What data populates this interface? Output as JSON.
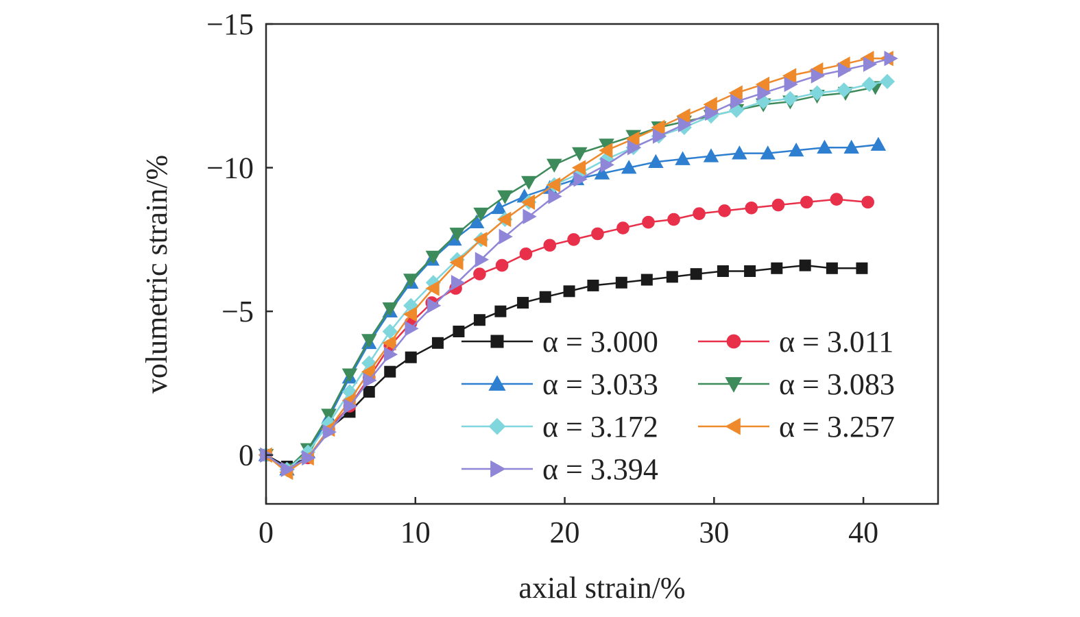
{
  "chart_data": {
    "type": "line",
    "title": "",
    "xlabel": "axial strain/%",
    "ylabel": "volumetric strain/%",
    "xlim": [
      0,
      45
    ],
    "ylim": [
      1.7,
      -15
    ],
    "y_axis_inverted": true,
    "grid": false,
    "legend_position": "lower-right, inside plot, two columns",
    "x_ticks": [
      0,
      10,
      20,
      30,
      40
    ],
    "x_tick_labels": [
      "0",
      "10",
      "20",
      "30",
      "40"
    ],
    "y_ticks": [
      0,
      -5,
      -10,
      -15
    ],
    "y_tick_labels": [
      "0",
      "−5",
      "−10",
      "−15"
    ],
    "series": [
      {
        "name": "α = 3.000",
        "color": "#1a1a1a",
        "marker": "square",
        "points": [
          [
            0,
            0
          ],
          [
            1.4,
            0.4
          ],
          [
            2.8,
            0.1
          ],
          [
            4.2,
            -0.9
          ],
          [
            5.6,
            -1.5
          ],
          [
            6.9,
            -2.2
          ],
          [
            8.3,
            -2.9
          ],
          [
            9.7,
            -3.4
          ],
          [
            11.5,
            -3.9
          ],
          [
            12.9,
            -4.3
          ],
          [
            14.3,
            -4.7
          ],
          [
            15.7,
            -5.0
          ],
          [
            17.2,
            -5.3
          ],
          [
            18.7,
            -5.5
          ],
          [
            20.3,
            -5.7
          ],
          [
            21.9,
            -5.9
          ],
          [
            23.8,
            -6.0
          ],
          [
            25.5,
            -6.1
          ],
          [
            27.2,
            -6.2
          ],
          [
            28.8,
            -6.3
          ],
          [
            30.6,
            -6.4
          ],
          [
            32.4,
            -6.4
          ],
          [
            34.2,
            -6.5
          ],
          [
            36.1,
            -6.6
          ],
          [
            37.9,
            -6.5
          ],
          [
            39.9,
            -6.5
          ]
        ]
      },
      {
        "name": "α = 3.011",
        "color": "#e8304a",
        "marker": "circle",
        "points": [
          [
            0,
            0
          ],
          [
            1.4,
            0.5
          ],
          [
            2.8,
            0.1
          ],
          [
            4.2,
            -0.9
          ],
          [
            5.6,
            -1.7
          ],
          [
            6.9,
            -2.7
          ],
          [
            8.3,
            -3.8
          ],
          [
            9.7,
            -4.6
          ],
          [
            11.1,
            -5.3
          ],
          [
            12.7,
            -5.8
          ],
          [
            14.3,
            -6.3
          ],
          [
            15.8,
            -6.6
          ],
          [
            17.4,
            -7.0
          ],
          [
            19.0,
            -7.3
          ],
          [
            20.6,
            -7.5
          ],
          [
            22.2,
            -7.7
          ],
          [
            23.9,
            -7.9
          ],
          [
            25.6,
            -8.1
          ],
          [
            27.3,
            -8.2
          ],
          [
            29.0,
            -8.4
          ],
          [
            30.7,
            -8.5
          ],
          [
            32.5,
            -8.6
          ],
          [
            34.3,
            -8.7
          ],
          [
            36.2,
            -8.8
          ],
          [
            38.2,
            -8.9
          ],
          [
            40.3,
            -8.8
          ]
        ]
      },
      {
        "name": "α = 3.033",
        "color": "#2f7fd0",
        "marker": "triangle-up",
        "points": [
          [
            0,
            0
          ],
          [
            1.4,
            0.5
          ],
          [
            2.8,
            -0.1
          ],
          [
            4.2,
            -1.3
          ],
          [
            5.6,
            -2.7
          ],
          [
            6.9,
            -3.9
          ],
          [
            8.3,
            -5.0
          ],
          [
            9.7,
            -6.0
          ],
          [
            11.1,
            -6.8
          ],
          [
            12.6,
            -7.5
          ],
          [
            14.1,
            -8.1
          ],
          [
            15.6,
            -8.6
          ],
          [
            17.3,
            -9.0
          ],
          [
            19.0,
            -9.3
          ],
          [
            20.8,
            -9.6
          ],
          [
            22.5,
            -9.8
          ],
          [
            24.3,
            -10.0
          ],
          [
            26.1,
            -10.2
          ],
          [
            27.9,
            -10.3
          ],
          [
            29.8,
            -10.4
          ],
          [
            31.7,
            -10.5
          ],
          [
            33.6,
            -10.5
          ],
          [
            35.5,
            -10.6
          ],
          [
            37.4,
            -10.7
          ],
          [
            39.2,
            -10.7
          ],
          [
            41.0,
            -10.8
          ]
        ]
      },
      {
        "name": "α = 3.083",
        "color": "#3d8a5a",
        "marker": "triangle-down",
        "points": [
          [
            0,
            0
          ],
          [
            1.4,
            0.5
          ],
          [
            2.8,
            -0.2
          ],
          [
            4.2,
            -1.4
          ],
          [
            5.6,
            -2.8
          ],
          [
            6.9,
            -4.0
          ],
          [
            8.3,
            -5.1
          ],
          [
            9.7,
            -6.1
          ],
          [
            11.2,
            -6.9
          ],
          [
            12.8,
            -7.7
          ],
          [
            14.4,
            -8.4
          ],
          [
            16.0,
            -9.0
          ],
          [
            17.6,
            -9.5
          ],
          [
            19.3,
            -10.1
          ],
          [
            21.0,
            -10.5
          ],
          [
            22.8,
            -10.8
          ],
          [
            24.6,
            -11.1
          ],
          [
            26.3,
            -11.4
          ],
          [
            28.0,
            -11.6
          ],
          [
            29.8,
            -11.8
          ],
          [
            31.5,
            -12.0
          ],
          [
            33.3,
            -12.2
          ],
          [
            35.1,
            -12.3
          ],
          [
            36.9,
            -12.5
          ],
          [
            38.8,
            -12.6
          ],
          [
            40.8,
            -12.8
          ]
        ]
      },
      {
        "name": "α = 3.172",
        "color": "#7fd6dc",
        "marker": "diamond",
        "points": [
          [
            0,
            0
          ],
          [
            1.4,
            0.5
          ],
          [
            2.8,
            -0.1
          ],
          [
            4.2,
            -1.1
          ],
          [
            5.6,
            -2.2
          ],
          [
            6.9,
            -3.2
          ],
          [
            8.3,
            -4.3
          ],
          [
            9.7,
            -5.2
          ],
          [
            11.2,
            -6.0
          ],
          [
            12.8,
            -6.8
          ],
          [
            14.4,
            -7.5
          ],
          [
            16.0,
            -8.2
          ],
          [
            17.6,
            -8.8
          ],
          [
            19.3,
            -9.4
          ],
          [
            21.0,
            -9.8
          ],
          [
            22.8,
            -10.3
          ],
          [
            24.6,
            -10.7
          ],
          [
            26.3,
            -11.1
          ],
          [
            28.0,
            -11.4
          ],
          [
            29.8,
            -11.8
          ],
          [
            31.5,
            -12.0
          ],
          [
            33.3,
            -12.3
          ],
          [
            35.1,
            -12.4
          ],
          [
            36.9,
            -12.6
          ],
          [
            38.7,
            -12.7
          ],
          [
            40.4,
            -12.9
          ],
          [
            41.6,
            -13.0
          ]
        ]
      },
      {
        "name": "α = 3.257",
        "color": "#ef8a2c",
        "marker": "triangle-left",
        "points": [
          [
            0,
            0
          ],
          [
            1.4,
            0.6
          ],
          [
            2.8,
            0.1
          ],
          [
            4.2,
            -0.9
          ],
          [
            5.6,
            -1.9
          ],
          [
            6.9,
            -2.9
          ],
          [
            8.3,
            -3.9
          ],
          [
            9.7,
            -4.9
          ],
          [
            11.2,
            -5.8
          ],
          [
            12.8,
            -6.7
          ],
          [
            14.4,
            -7.5
          ],
          [
            16.0,
            -8.2
          ],
          [
            17.6,
            -8.8
          ],
          [
            19.3,
            -9.4
          ],
          [
            21.0,
            -10.0
          ],
          [
            22.8,
            -10.6
          ],
          [
            24.6,
            -11.0
          ],
          [
            26.3,
            -11.4
          ],
          [
            28.0,
            -11.8
          ],
          [
            29.8,
            -12.2
          ],
          [
            31.5,
            -12.6
          ],
          [
            33.3,
            -12.9
          ],
          [
            35.1,
            -13.2
          ],
          [
            36.9,
            -13.4
          ],
          [
            38.7,
            -13.6
          ],
          [
            40.3,
            -13.8
          ],
          [
            41.6,
            -13.8
          ]
        ]
      },
      {
        "name": "α = 3.394",
        "color": "#8f86d8",
        "marker": "triangle-right",
        "points": [
          [
            0,
            0
          ],
          [
            1.4,
            0.5
          ],
          [
            2.8,
            0.1
          ],
          [
            4.2,
            -0.8
          ],
          [
            5.6,
            -1.7
          ],
          [
            6.9,
            -2.6
          ],
          [
            8.3,
            -3.5
          ],
          [
            9.7,
            -4.4
          ],
          [
            11.2,
            -5.2
          ],
          [
            12.8,
            -6.0
          ],
          [
            14.4,
            -6.8
          ],
          [
            16.0,
            -7.6
          ],
          [
            17.6,
            -8.3
          ],
          [
            19.3,
            -9.0
          ],
          [
            21.0,
            -9.6
          ],
          [
            22.8,
            -10.1
          ],
          [
            24.6,
            -10.7
          ],
          [
            26.3,
            -11.1
          ],
          [
            28.0,
            -11.5
          ],
          [
            29.8,
            -11.9
          ],
          [
            31.5,
            -12.3
          ],
          [
            33.3,
            -12.6
          ],
          [
            35.1,
            -12.9
          ],
          [
            36.9,
            -13.2
          ],
          [
            38.7,
            -13.4
          ],
          [
            40.4,
            -13.6
          ],
          [
            41.8,
            -13.8
          ]
        ]
      }
    ]
  }
}
